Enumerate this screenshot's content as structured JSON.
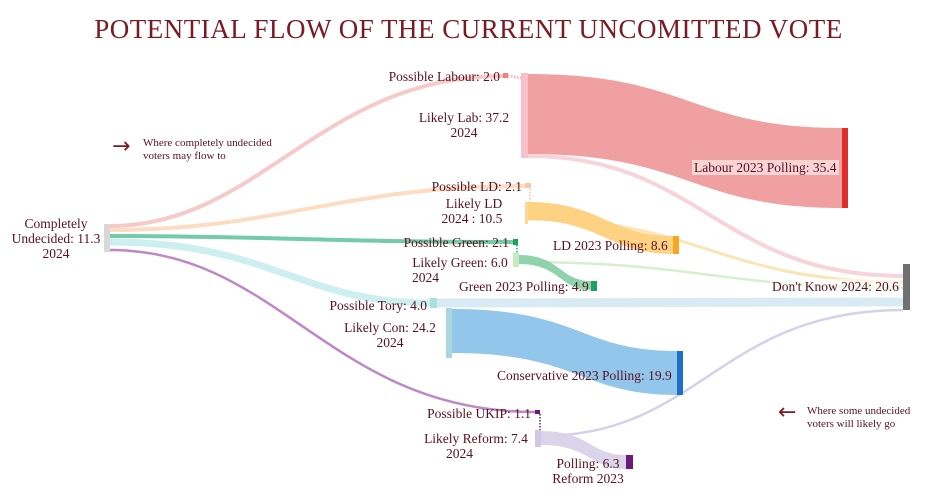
{
  "title": "POTENTIAL FLOW OF THE CURRENT UNCOMITTED VOTE",
  "nodes": {
    "undecided": [
      "Completely",
      "Undecided: 11.3",
      "2024"
    ],
    "possible_labour": "Possible Labour: 2.0",
    "likely_lab": [
      "Likely Lab: 37.2",
      "2024"
    ],
    "labour_2023": "Labour 2023 Polling: 35.4",
    "possible_ld": "Possible LD: 2.1",
    "likely_ld": [
      "Likely LD",
      ": 10.5",
      "2024"
    ],
    "ld_2023": "LD 2023 Polling: 8.6",
    "possible_green": "Possible Green: 2.1",
    "likely_green": [
      "Likely Green: 6.0",
      "2024"
    ],
    "green_2023": "Green 2023 Polling: 4.9",
    "dont_know": "Don't Know 2024: 20.6",
    "possible_tory": "Possible Tory: 4.0",
    "likely_con": [
      "Likely Con: 24.2",
      "2024"
    ],
    "conservative_2023": "Conservative 2023 Polling: 19.9",
    "possible_ukip": "Possible UKIP: 1.1",
    "likely_reform": [
      "Likely Reform: 7.4",
      "2024"
    ],
    "reform_2023": [
      "Polling: 6.3",
      "Reform 2023"
    ]
  },
  "annotations": {
    "left": [
      "Where completely undecided",
      "voters may flow to"
    ],
    "right": [
      "Where some undecided",
      "voters will likely go"
    ],
    "left_arrow": "→",
    "right_arrow": "←"
  },
  "colors": {
    "title": "#7a1a25",
    "labour": "#e8474c",
    "ld": "#f5a623",
    "green": "#1aa35e",
    "conservative": "#1f6fc7",
    "reform": "#6a1a7a",
    "dont_know": "#707070",
    "undecided": "#d8d8d8"
  }
}
